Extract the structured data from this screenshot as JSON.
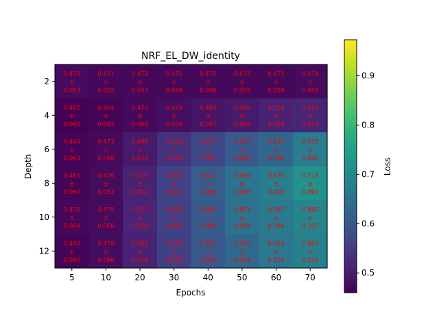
{
  "chart_data": {
    "type": "heatmap",
    "title": "NRF_EL_DW_identity",
    "xlabel": "Epochs",
    "ylabel": "Depth",
    "colorbar_label": "Loss",
    "colormap": "viridis",
    "x": [
      "5",
      "10",
      "20",
      "30",
      "40",
      "50",
      "60",
      "70"
    ],
    "y": [
      "2",
      "4",
      "6",
      "8",
      "10",
      "12"
    ],
    "y_ticks": [
      "2",
      "4",
      "6",
      "8",
      "10",
      "12"
    ],
    "colorbar_ticks": [
      "0.5",
      "0.6",
      "0.7",
      "0.8",
      "0.9"
    ],
    "colorbar_range": [
      0.46,
      0.973
    ],
    "annotation_color": "#ff0000",
    "values": [
      [
        0.475,
        0.471,
        0.472,
        0.471,
        0.472,
        0.472,
        0.471,
        0.474
      ],
      [
        0.462,
        0.464,
        0.472,
        0.479,
        0.489,
        0.498,
        0.51,
        0.515
      ],
      [
        0.464,
        0.473,
        0.496,
        0.534,
        0.571,
        0.607,
        0.631,
        0.675
      ],
      [
        0.465,
        0.476,
        0.51,
        0.561,
        0.612,
        0.654,
        0.675,
        0.718
      ],
      [
        0.47,
        0.475,
        0.513,
        0.56,
        0.606,
        0.652,
        0.667,
        0.69
      ],
      [
        0.464,
        0.478,
        0.509,
        0.556,
        0.603,
        0.635,
        0.663,
        0.682
      ]
    ],
    "errors": [
      [
        0.053,
        0.055,
        0.057,
        0.058,
        0.058,
        0.059,
        0.058,
        0.058
      ],
      [
        0.06,
        0.063,
        0.068,
        0.068,
        0.067,
        0.069,
        0.07,
        0.073
      ],
      [
        0.063,
        0.068,
        0.074,
        0.078,
        0.087,
        0.09,
        0.09,
        0.096
      ],
      [
        0.06,
        0.063,
        0.072,
        0.081,
        0.084,
        0.086,
        0.103,
        0.092
      ],
      [
        0.064,
        0.066,
        0.079,
        0.086,
        0.089,
        0.099,
        0.094,
        0.105
      ],
      [
        0.06,
        0.066,
        0.076,
        0.089,
        0.092,
        0.091,
        0.101,
        0.116
      ]
    ]
  }
}
